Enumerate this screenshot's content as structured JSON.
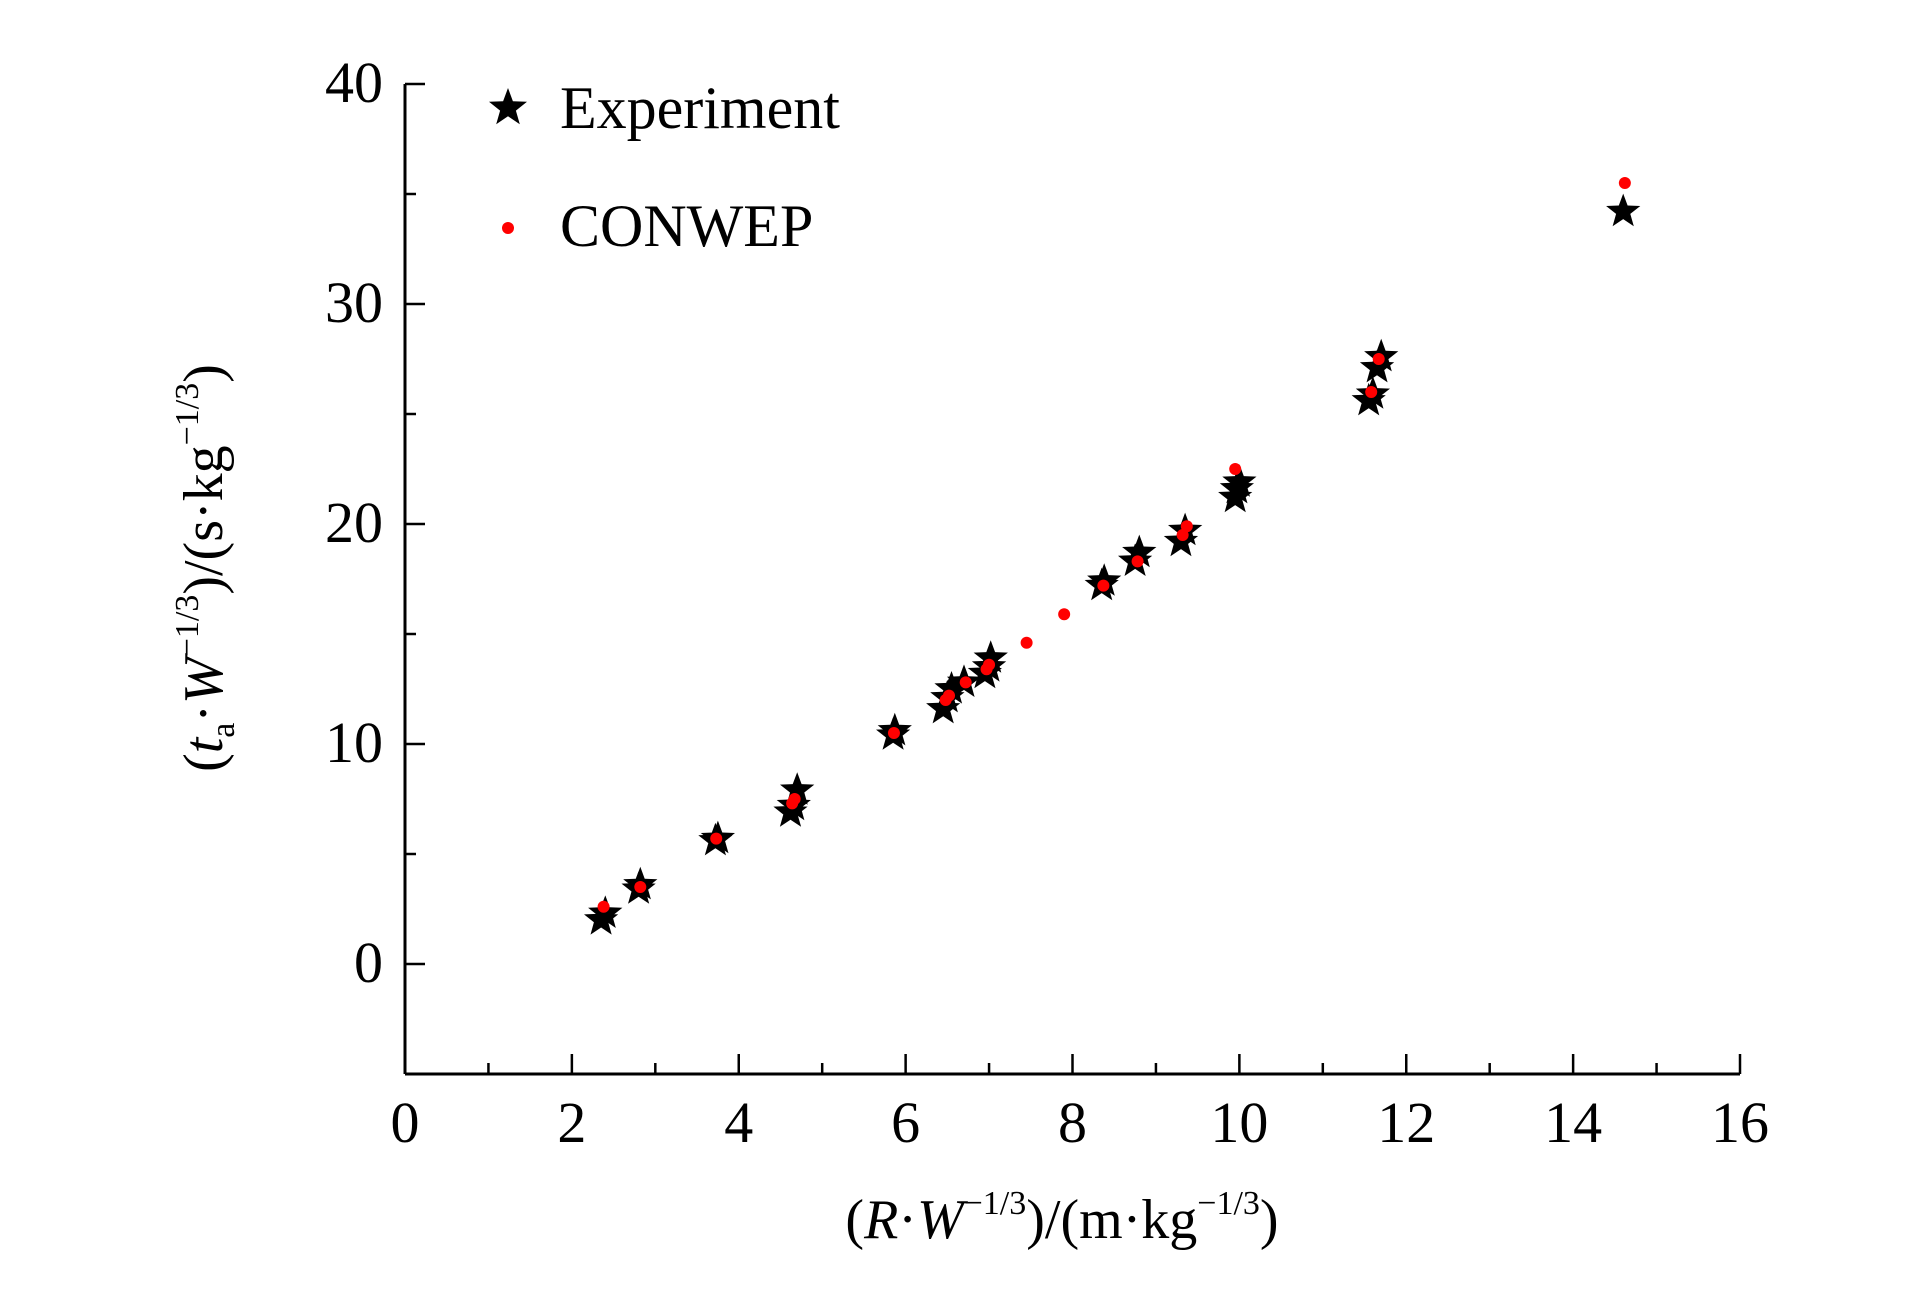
{
  "chart_data": {
    "type": "scatter",
    "xlim": [
      0,
      16
    ],
    "ylim": [
      -5,
      40
    ],
    "x_ticks": [
      "0",
      "2",
      "4",
      "6",
      "8",
      "10",
      "12",
      "14",
      "16"
    ],
    "y_ticks": [
      "0",
      "10",
      "20",
      "30",
      "40"
    ],
    "xlabel": {
      "open": "(",
      "var1": "R",
      "dot": "·",
      "var2": "W",
      "exp": "−1/3",
      "rest": ")/(m·kg",
      "exp2": "−1/3",
      "close": ")"
    },
    "ylabel": {
      "open": "(",
      "var1": "t",
      "sub": "a",
      "dot": "·",
      "var2": "W",
      "exp": "−1/3",
      "rest": ")/(s·kg",
      "exp2": "−1/3",
      "close": ")"
    },
    "grid": false,
    "legend_position": "top-left",
    "series": [
      {
        "name": "Experiment",
        "marker": "star",
        "color": "#000000",
        "points": [
          [
            2.35,
            2.0
          ],
          [
            2.4,
            2.3
          ],
          [
            2.8,
            3.4
          ],
          [
            2.82,
            3.6
          ],
          [
            3.72,
            5.6
          ],
          [
            3.75,
            5.7
          ],
          [
            4.62,
            6.9
          ],
          [
            4.66,
            7.2
          ],
          [
            4.7,
            7.9
          ],
          [
            5.85,
            10.4
          ],
          [
            5.87,
            10.6
          ],
          [
            6.45,
            11.6
          ],
          [
            6.5,
            12.1
          ],
          [
            6.55,
            12.5
          ],
          [
            6.7,
            12.8
          ],
          [
            6.95,
            13.2
          ],
          [
            7.0,
            13.5
          ],
          [
            7.02,
            13.9
          ],
          [
            8.35,
            17.2
          ],
          [
            8.38,
            17.4
          ],
          [
            8.75,
            18.3
          ],
          [
            8.8,
            18.7
          ],
          [
            9.3,
            19.2
          ],
          [
            9.35,
            19.7
          ],
          [
            9.95,
            21.2
          ],
          [
            9.97,
            21.6
          ],
          [
            10.0,
            21.9
          ],
          [
            11.55,
            25.6
          ],
          [
            11.6,
            25.9
          ],
          [
            11.65,
            27.1
          ],
          [
            11.7,
            27.6
          ],
          [
            14.6,
            34.2
          ]
        ]
      },
      {
        "name": "CONWEP",
        "marker": "dot",
        "color": "#ff0000",
        "points": [
          [
            2.38,
            2.6
          ],
          [
            2.82,
            3.5
          ],
          [
            3.73,
            5.7
          ],
          [
            4.64,
            7.3
          ],
          [
            4.67,
            7.5
          ],
          [
            5.86,
            10.5
          ],
          [
            6.48,
            12.0
          ],
          [
            6.52,
            12.2
          ],
          [
            6.72,
            12.8
          ],
          [
            6.97,
            13.4
          ],
          [
            7.0,
            13.6
          ],
          [
            7.45,
            14.6
          ],
          [
            7.9,
            15.9
          ],
          [
            8.37,
            17.2
          ],
          [
            8.78,
            18.3
          ],
          [
            9.32,
            19.5
          ],
          [
            9.37,
            19.9
          ],
          [
            9.95,
            22.5
          ],
          [
            11.58,
            26.0
          ],
          [
            11.67,
            27.5
          ],
          [
            14.62,
            35.5
          ]
        ]
      }
    ]
  }
}
